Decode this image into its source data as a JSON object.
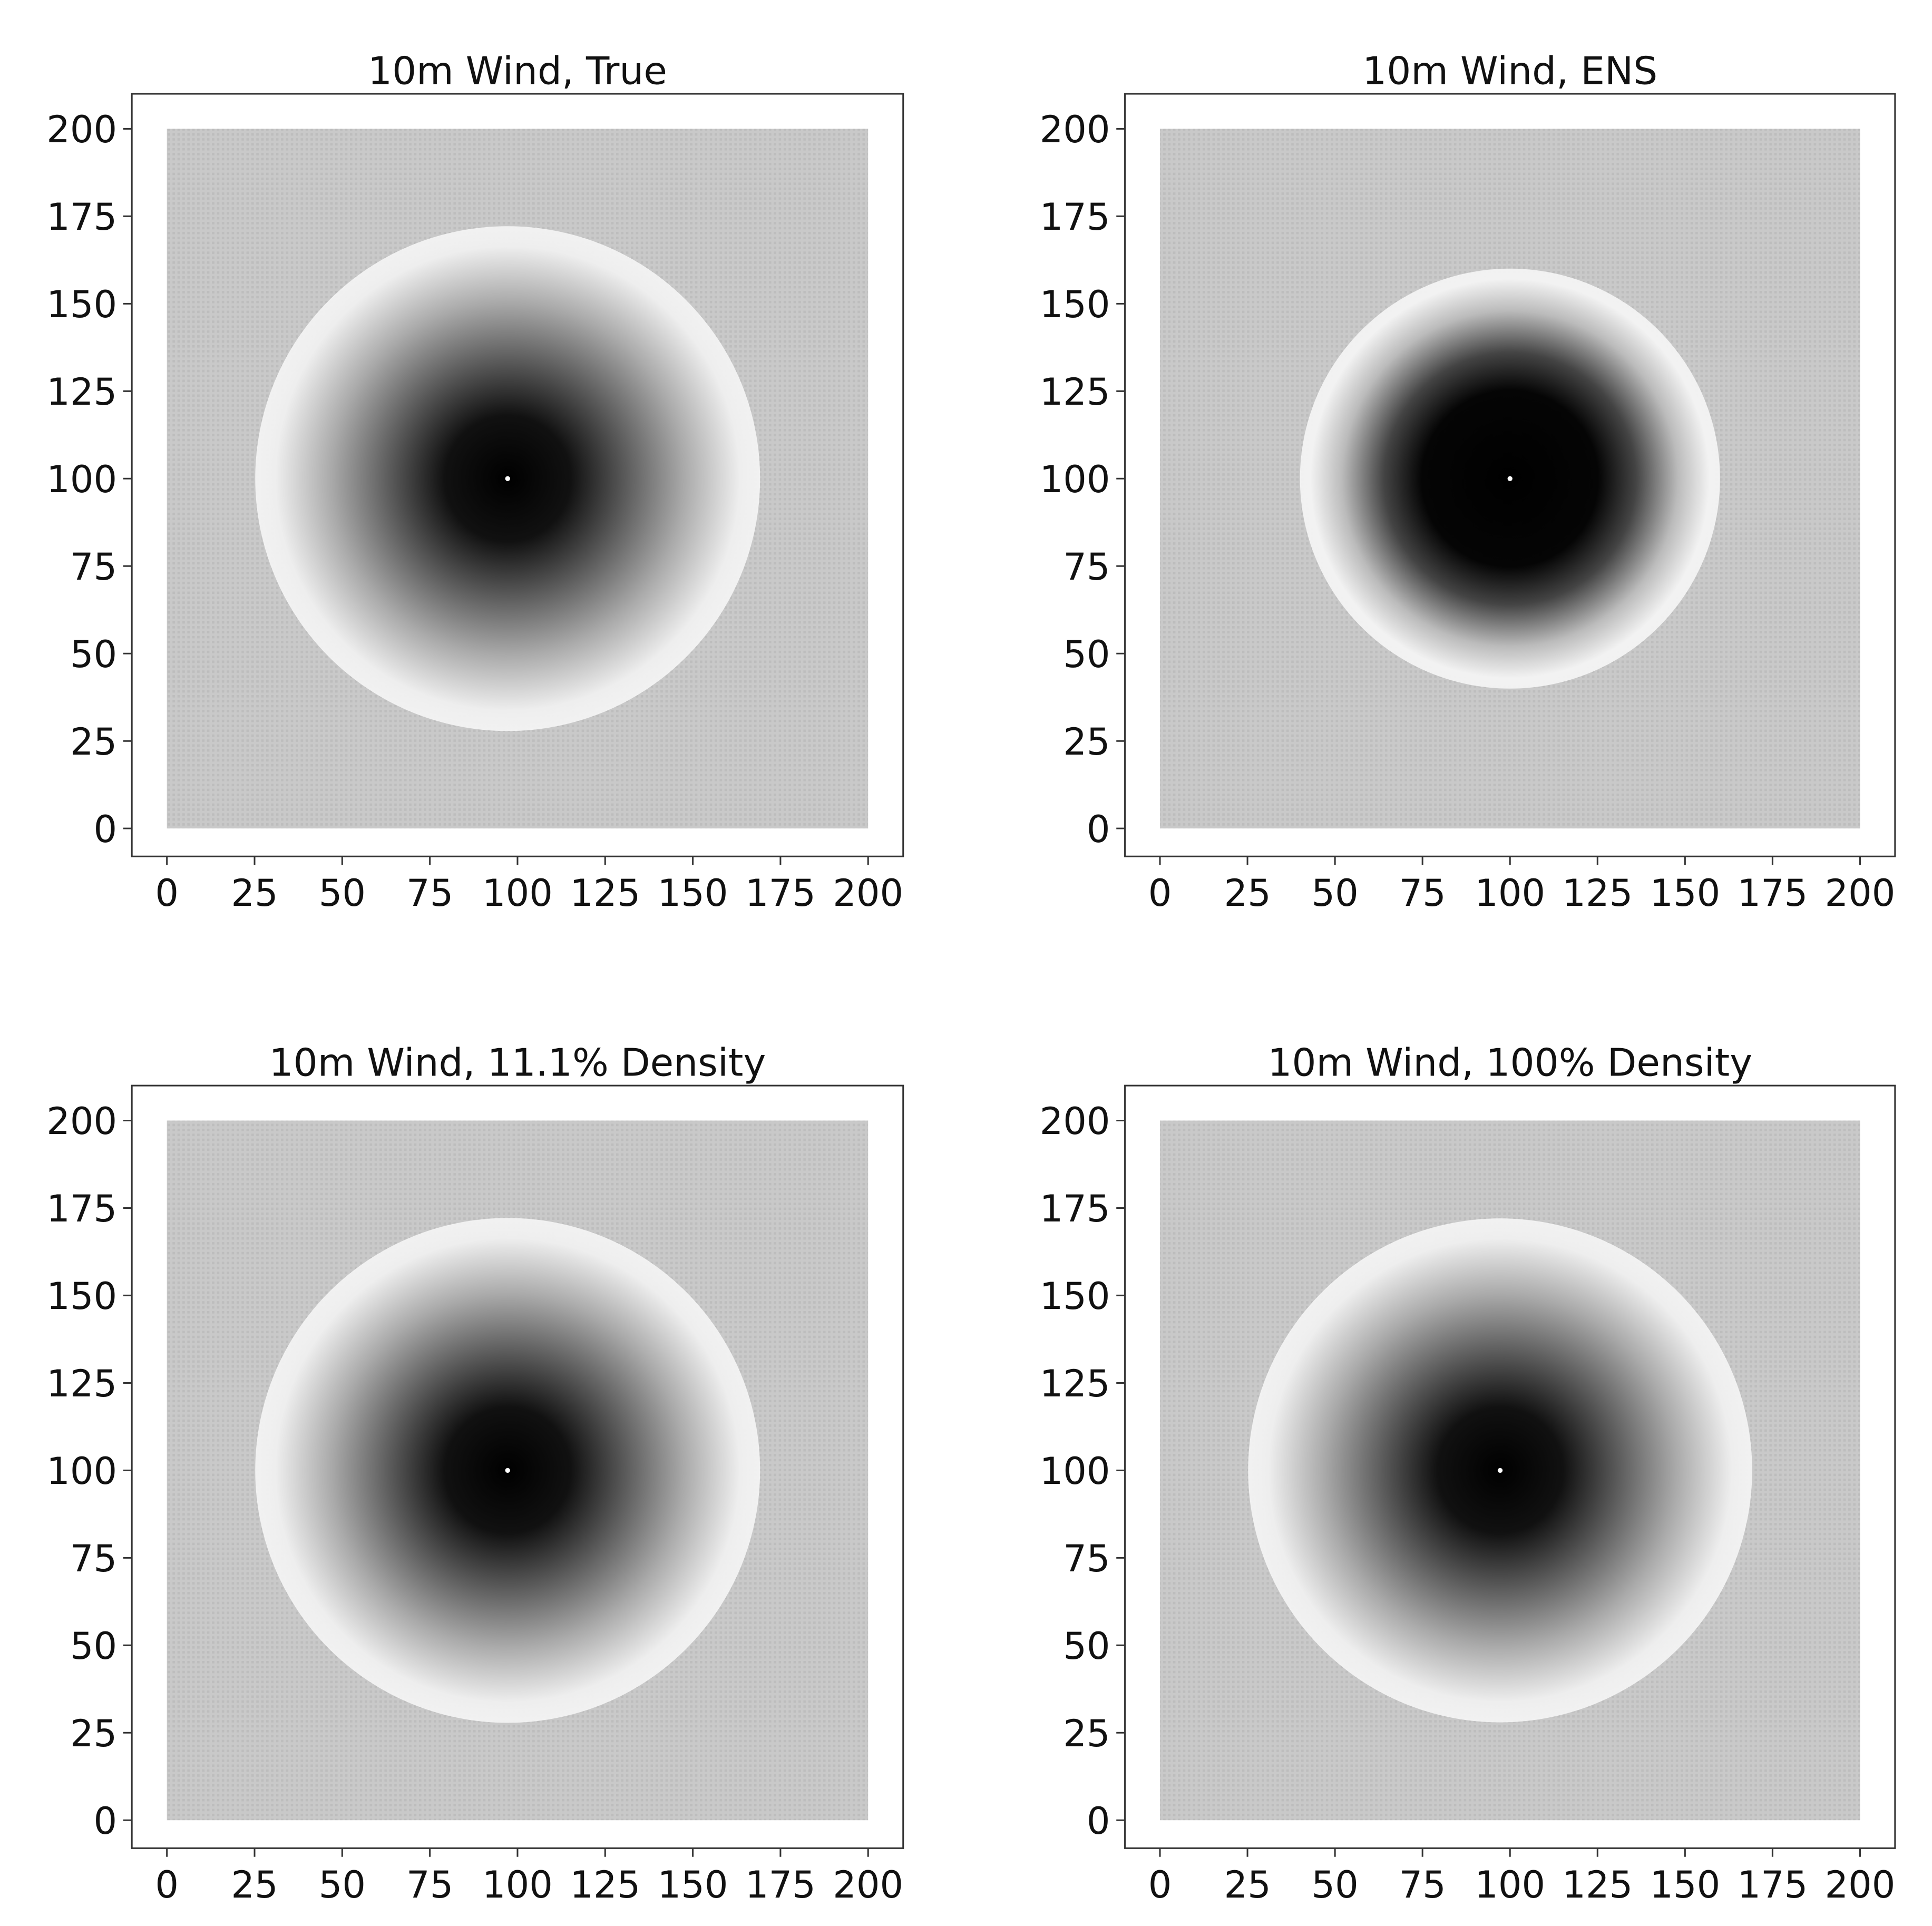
{
  "chart_data": [
    {
      "type": "heatmap",
      "title": "10m Wind, True",
      "xlim": [
        -10,
        210
      ],
      "ylim": [
        -8,
        210
      ],
      "xticks": [
        0,
        25,
        50,
        75,
        100,
        125,
        150,
        175,
        200
      ],
      "yticks": [
        0,
        25,
        50,
        75,
        100,
        125,
        150,
        175,
        200
      ]
    },
    {
      "type": "heatmap",
      "title": "10m Wind, ENS",
      "xlim": [
        -10,
        210
      ],
      "ylim": [
        -8,
        210
      ],
      "xticks": [
        0,
        25,
        50,
        75,
        100,
        125,
        150,
        175,
        200
      ],
      "yticks": [
        0,
        25,
        50,
        75,
        100,
        125,
        150,
        175,
        200
      ]
    },
    {
      "type": "heatmap",
      "title": "10m Wind, 11.1% Density",
      "xlim": [
        -10,
        210
      ],
      "ylim": [
        -8,
        210
      ],
      "xticks": [
        0,
        25,
        50,
        75,
        100,
        125,
        150,
        175,
        200
      ],
      "yticks": [
        0,
        25,
        50,
        75,
        100,
        125,
        150,
        175,
        200
      ]
    },
    {
      "type": "heatmap",
      "title": "10m Wind, 100% Density",
      "xlim": [
        -10,
        210
      ],
      "ylim": [
        -8,
        210
      ],
      "xticks": [
        0,
        25,
        50,
        75,
        100,
        125,
        150,
        175,
        200
      ],
      "yticks": [
        0,
        25,
        50,
        75,
        100,
        125,
        150,
        175,
        200
      ]
    }
  ]
}
